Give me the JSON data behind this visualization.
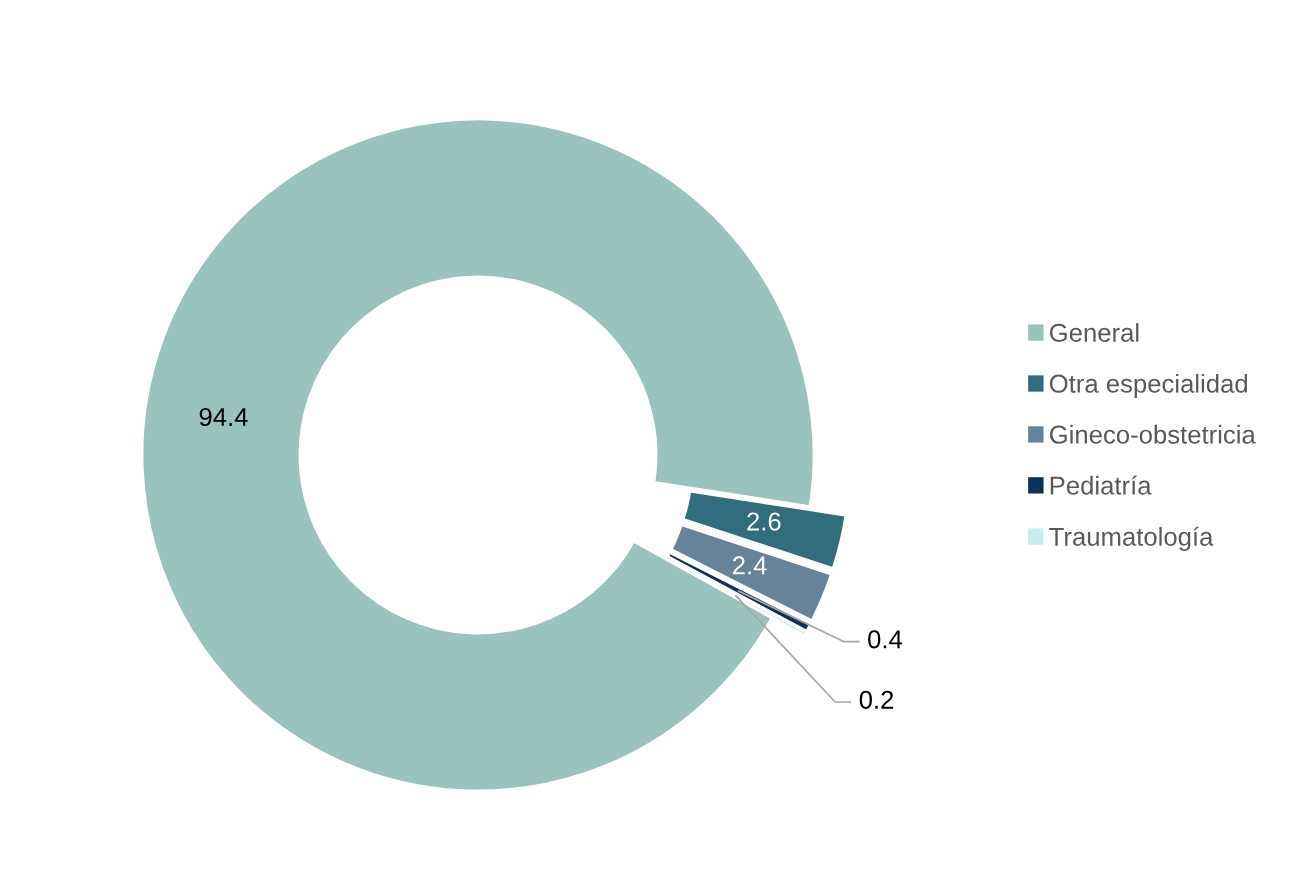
{
  "chart_data": {
    "type": "donut",
    "categories": [
      "General",
      "Otra especialidad",
      "Gineco-obstetricia",
      "Pediatría",
      "Traumatología"
    ],
    "values": [
      94.4,
      2.6,
      2.4,
      0.4,
      0.2
    ],
    "colors": [
      "#99c3bc",
      "#316d7d",
      "#67839a",
      "#0b3358",
      "#c9ecec"
    ],
    "data_labels": true,
    "legend": "right"
  }
}
